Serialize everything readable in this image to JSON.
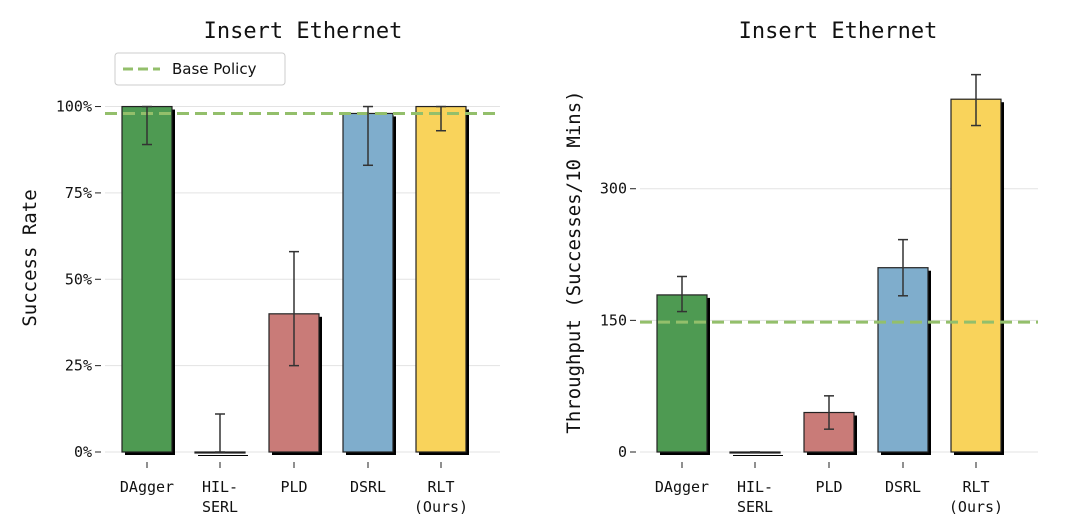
{
  "chart_data": [
    {
      "type": "bar",
      "title": "Insert Ethernet",
      "xlabel": "",
      "ylabel": "Success Rate",
      "categories": [
        "DAgger",
        "HIL-\nSERL",
        "PLD",
        "DSRL",
        "RLT\n(Ours)"
      ],
      "values": [
        100,
        0,
        40,
        98,
        100
      ],
      "errors": [
        [
          89,
          100
        ],
        [
          0,
          11
        ],
        [
          25,
          58
        ],
        [
          83,
          100
        ],
        [
          93,
          100
        ]
      ],
      "colors": [
        "#4e9a52",
        "#4e9a52",
        "#c97b78",
        "#7fadcc",
        "#f9d35b"
      ],
      "ylim": [
        0,
        110
      ],
      "yticks": [
        0,
        25,
        50,
        75,
        100
      ],
      "ytick_labels": [
        "0%",
        "25%",
        "50%",
        "75%",
        "100%"
      ],
      "reference_line": {
        "name": "Base Policy",
        "value": 98,
        "color": "#93bf6b"
      },
      "legend": {
        "placement": "top-left",
        "entries": [
          "Base Policy"
        ]
      },
      "grid": "horizontal"
    },
    {
      "type": "bar",
      "title": "Insert Ethernet",
      "xlabel": "",
      "ylabel": "Throughput (Successes/10 Mins)",
      "categories": [
        "DAgger",
        "HIL-\nSERL",
        "PLD",
        "DSRL",
        "RLT\n(Ours)"
      ],
      "values": [
        179,
        0,
        45,
        210,
        402
      ],
      "errors": [
        [
          160,
          200
        ],
        [
          0,
          0
        ],
        [
          26,
          64
        ],
        [
          178,
          242
        ],
        [
          372,
          430
        ]
      ],
      "colors": [
        "#4e9a52",
        "#4e9a52",
        "#c97b78",
        "#7fadcc",
        "#f9d35b"
      ],
      "ylim": [
        0,
        433
      ],
      "yticks": [
        0,
        150,
        300
      ],
      "ytick_labels": [
        "0",
        "150",
        "300"
      ],
      "reference_line": {
        "name": "Base Policy",
        "value": 148,
        "color": "#93bf6b"
      },
      "grid": "horizontal"
    }
  ]
}
